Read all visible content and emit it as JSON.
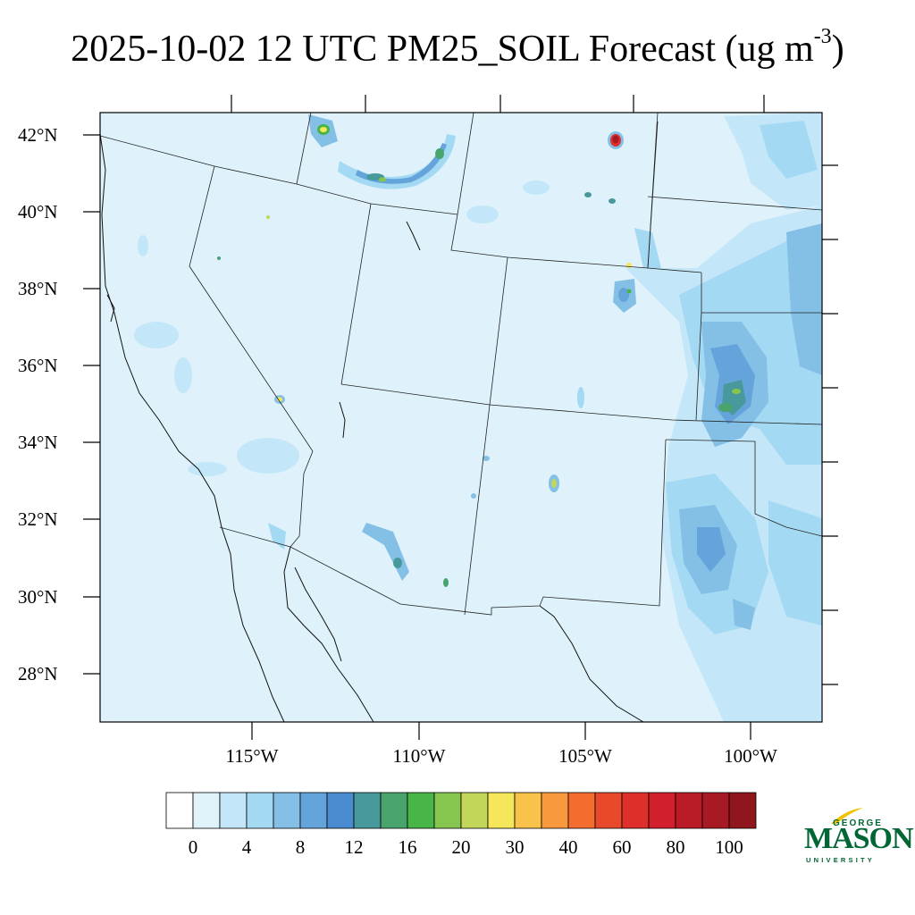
{
  "title": {
    "main": "2025-10-02 12 UTC PM25_SOIL Forecast (ug m",
    "superscript": "-3",
    "close": ")"
  },
  "map": {
    "variable": "PM25_SOIL",
    "units": "ug m-3",
    "lat_labels": [
      "42°N",
      "40°N",
      "38°N",
      "36°N",
      "34°N",
      "32°N",
      "30°N",
      "28°N"
    ],
    "lon_labels": [
      "115°W",
      "110°W",
      "105°W",
      "100°W"
    ],
    "background_color": "#dff2fb",
    "hotspots": [
      {
        "location": "northeastern Wyoming",
        "level": "80-100"
      },
      {
        "location": "western Wyoming / Idaho border",
        "level": "20-30"
      },
      {
        "location": "southern Wyoming arc",
        "level": "16-20"
      },
      {
        "location": "southeastern New Mexico",
        "level": "20-30"
      },
      {
        "location": "Texas/Oklahoma panhandle",
        "level": "16-20"
      },
      {
        "location": "southern Nevada",
        "level": "20-30"
      },
      {
        "location": "central Colorado",
        "level": "16-20"
      }
    ]
  },
  "colorbar": {
    "labels": [
      "0",
      "4",
      "8",
      "12",
      "16",
      "20",
      "30",
      "40",
      "60",
      "80",
      "100"
    ],
    "colors": [
      "#ffffff",
      "#e0f3fb",
      "#c3e7f8",
      "#a4d9f3",
      "#84bfe6",
      "#65a4db",
      "#4a8ccf",
      "#47999c",
      "#48a36d",
      "#47b547",
      "#86c64e",
      "#c2d75a",
      "#f6e659",
      "#f9c24a",
      "#f8993d",
      "#f56d2e",
      "#e8492b",
      "#df2f2a",
      "#d21f2c",
      "#bb1b27",
      "#a71a23",
      "#8f161c"
    ]
  },
  "logo": {
    "line1": "GEORGE",
    "line2": "MASON",
    "line3": "UNIVERSITY",
    "color": "#006633",
    "accent": "#f2c200"
  }
}
